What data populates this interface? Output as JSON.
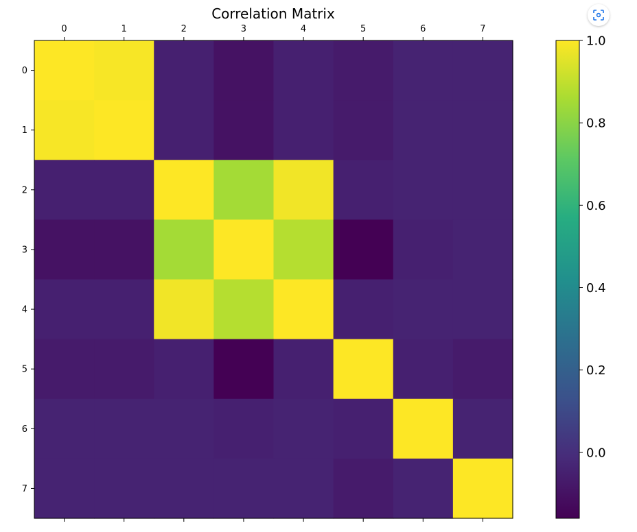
{
  "chart_data": {
    "type": "heatmap",
    "title": "Correlation Matrix",
    "x_ticks": [
      "0",
      "1",
      "2",
      "3",
      "4",
      "5",
      "6",
      "7"
    ],
    "y_ticks": [
      "0",
      "1",
      "2",
      "3",
      "4",
      "5",
      "6",
      "7"
    ],
    "values": [
      [
        1.0,
        0.99,
        -0.05,
        -0.1,
        -0.05,
        -0.07,
        -0.04,
        -0.04
      ],
      [
        0.99,
        1.0,
        -0.05,
        -0.1,
        -0.05,
        -0.07,
        -0.04,
        -0.04
      ],
      [
        -0.05,
        -0.05,
        1.0,
        0.85,
        0.98,
        -0.05,
        -0.04,
        -0.04
      ],
      [
        -0.1,
        -0.1,
        0.85,
        1.0,
        0.88,
        -0.16,
        -0.05,
        -0.04
      ],
      [
        -0.05,
        -0.05,
        0.98,
        0.88,
        1.0,
        -0.05,
        -0.04,
        -0.04
      ],
      [
        -0.07,
        -0.07,
        -0.05,
        -0.16,
        -0.05,
        1.0,
        -0.05,
        -0.07
      ],
      [
        -0.04,
        -0.04,
        -0.04,
        -0.05,
        -0.04,
        -0.05,
        1.0,
        -0.04
      ],
      [
        -0.04,
        -0.04,
        -0.04,
        -0.04,
        -0.04,
        -0.07,
        -0.04,
        1.0
      ]
    ],
    "colormap": "viridis",
    "colorbar": {
      "vmin": -0.16,
      "vmax": 1.0,
      "ticks": [
        0.0,
        0.2,
        0.4,
        0.6,
        0.8,
        1.0
      ],
      "tick_labels": [
        "0.0",
        "0.2",
        "0.4",
        "0.6",
        "0.8",
        "1.0"
      ]
    },
    "grid": false
  },
  "ui": {
    "focus_icon": "focus-scan-icon",
    "accent_color": "#1a73e8"
  }
}
